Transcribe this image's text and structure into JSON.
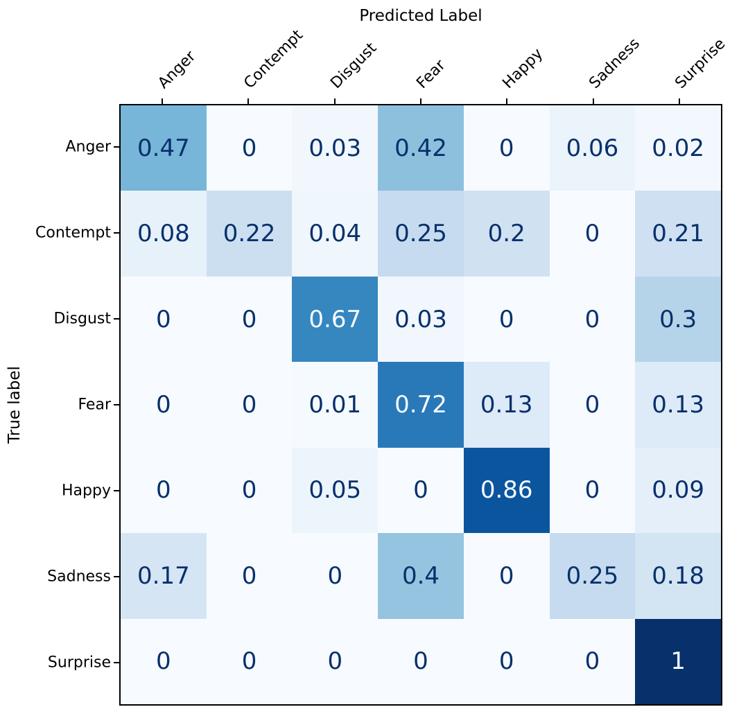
{
  "chart_data": {
    "type": "heatmap",
    "title": "Predicted Label",
    "xlabel": "Predicted Label",
    "ylabel": "True label",
    "categories": [
      "Anger",
      "Contempt",
      "Disgust",
      "Fear",
      "Happy",
      "Sadness",
      "Surprise"
    ],
    "row_labels": [
      "Anger",
      "Contempt",
      "Disgust",
      "Fear",
      "Happy",
      "Sadness",
      "Surprise"
    ],
    "matrix": [
      [
        0.47,
        0,
        0.03,
        0.42,
        0,
        0.06,
        0.02
      ],
      [
        0.08,
        0.22,
        0.04,
        0.25,
        0.2,
        0,
        0.21
      ],
      [
        0,
        0,
        0.67,
        0.03,
        0,
        0,
        0.3
      ],
      [
        0,
        0,
        0.01,
        0.72,
        0.13,
        0,
        0.13
      ],
      [
        0,
        0,
        0.05,
        0,
        0.86,
        0,
        0.09
      ],
      [
        0.17,
        0,
        0,
        0.4,
        0,
        0.25,
        0.18
      ],
      [
        0,
        0,
        0,
        0,
        0,
        0,
        1
      ]
    ],
    "value_range": [
      0,
      1
    ],
    "colormap": "Blues",
    "legend": "none",
    "grid": false
  },
  "colors": {
    "background": "#ffffff",
    "spine": "#000000",
    "cell_text_dark": "#08306b",
    "cell_text_light": "#f7fbff",
    "colormap_stops": [
      "#f7fbff",
      "#deebf7",
      "#c6dbef",
      "#9ecae1",
      "#6baed6",
      "#4292c6",
      "#2171b5",
      "#08519c",
      "#08306b"
    ],
    "text_threshold": 0.5
  }
}
